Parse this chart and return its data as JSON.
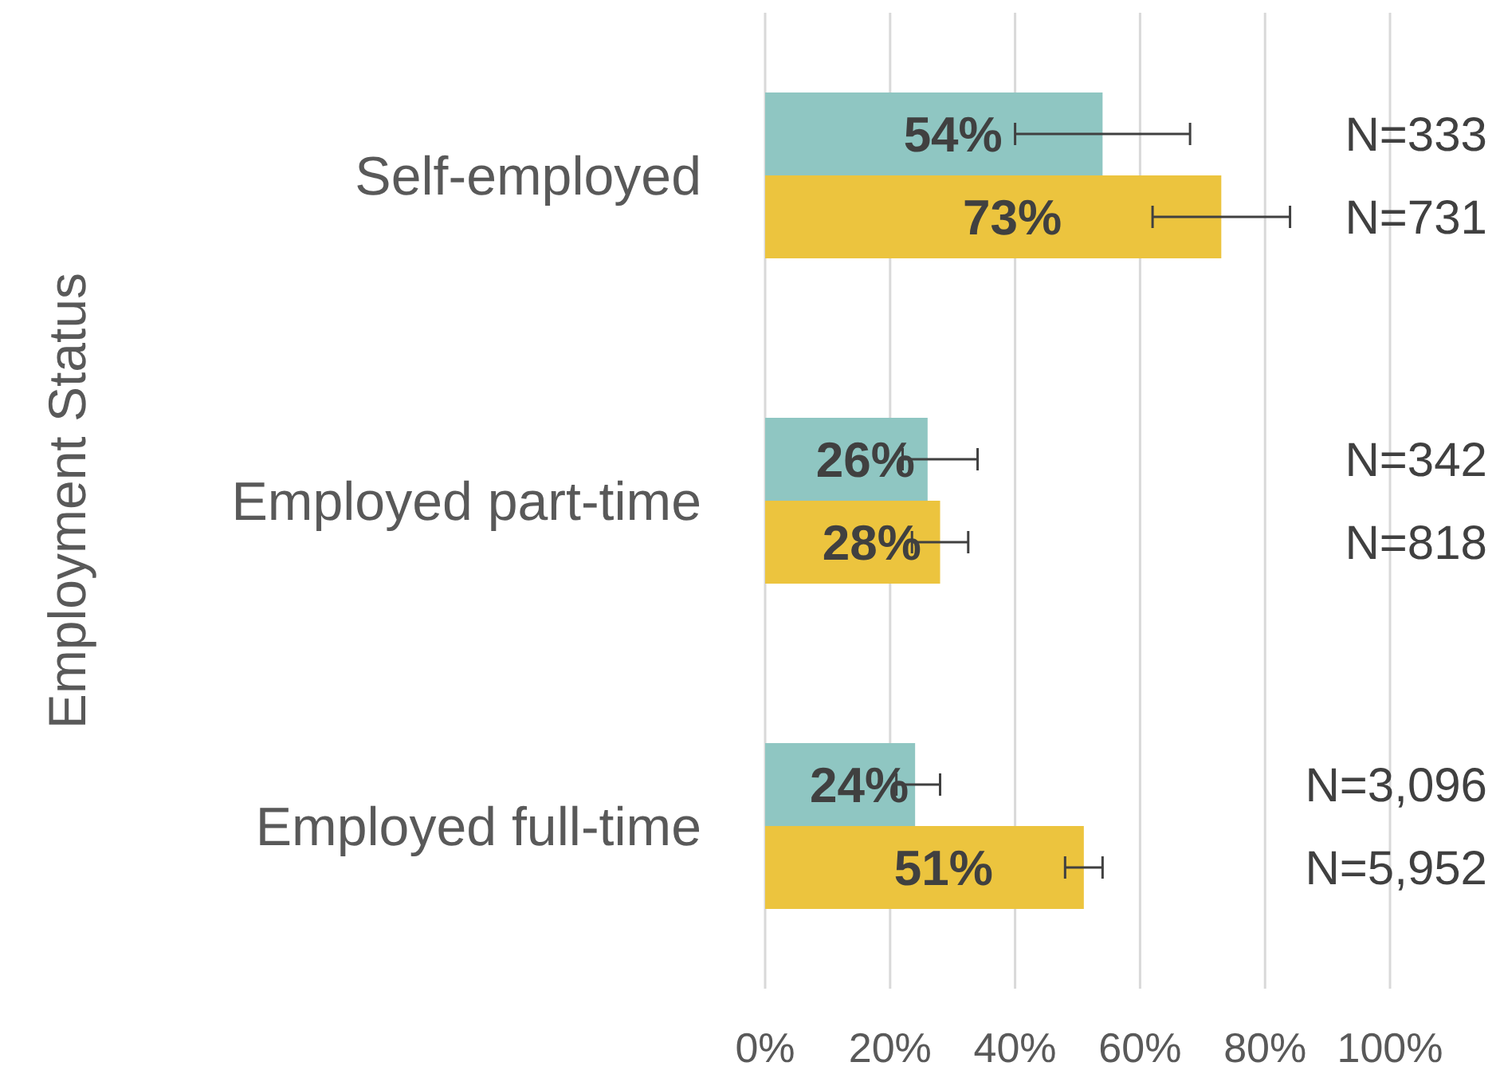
{
  "chart_data": {
    "type": "bar",
    "orientation": "horizontal",
    "ylabel": "Employment Status",
    "categories": [
      "Self-employed",
      "Employed part-time",
      "Employed full-time"
    ],
    "series": [
      {
        "color": "#8fc6c2",
        "values": [
          54,
          26,
          24
        ],
        "value_labels": [
          "54%",
          "26%",
          "24%"
        ],
        "errors": [
          [
            40,
            68
          ],
          [
            22,
            34
          ],
          [
            21,
            28
          ]
        ]
      },
      {
        "color": "#ecc43e",
        "values": [
          73,
          28,
          51
        ],
        "value_labels": [
          "73%",
          "28%",
          "51%"
        ],
        "errors": [
          [
            62,
            84
          ],
          [
            23.5,
            32.5
          ],
          [
            48,
            54
          ]
        ]
      }
    ],
    "xlim": [
      0,
      100
    ],
    "xticks": [
      {
        "value": 0,
        "label": "0%"
      },
      {
        "value": 20,
        "label": "20%"
      },
      {
        "value": 40,
        "label": "40%"
      },
      {
        "value": 60,
        "label": "60%"
      },
      {
        "value": 80,
        "label": "80%"
      },
      {
        "value": 100,
        "label": "100%"
      }
    ],
    "grid": "x",
    "annotations": [
      "N=333",
      "N=731",
      "N=342",
      "N=818",
      "N=3,096",
      "N=5,952"
    ]
  }
}
